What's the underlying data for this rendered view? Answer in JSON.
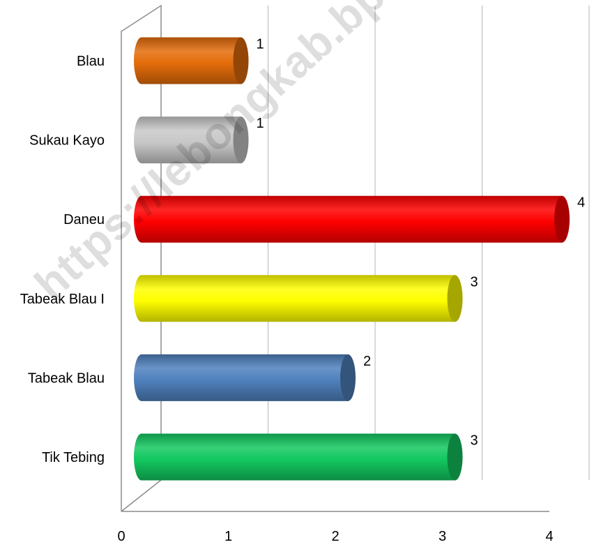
{
  "chart_data": {
    "type": "bar",
    "orientation": "horizontal",
    "categories": [
      "Tik Tebing",
      "Tabeak Blau",
      "Tabeak Blau I",
      "Daneu",
      "Sukau Kayo",
      "Blau"
    ],
    "values": [
      3,
      2,
      3,
      4,
      1,
      1
    ],
    "colors": [
      "#12c860",
      "#4f81bd",
      "#ffff00",
      "#ff0000",
      "#c8c8c8",
      "#e46c0a"
    ],
    "xlim": [
      0,
      4
    ],
    "xticks": [
      "0",
      "1",
      "2",
      "3",
      "4"
    ],
    "data_labels": [
      "3",
      "2",
      "3",
      "4",
      "1",
      "1"
    ],
    "grid": true,
    "style": "3d-cylinder",
    "title": "",
    "xlabel": "",
    "ylabel": ""
  },
  "watermark": {
    "text": "https://lebongkab.bps.go.id"
  }
}
